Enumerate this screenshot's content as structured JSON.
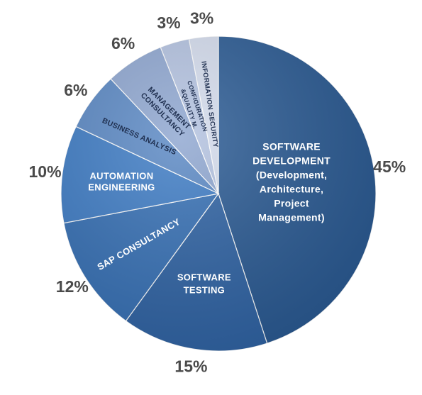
{
  "chart_data": {
    "type": "pie",
    "slices": [
      {
        "lines": [
          "SOFTWARE",
          "DEVELOPMENT",
          "(Development,",
          "Architecture,",
          "Project",
          "Management)"
        ],
        "value": 45,
        "pct_label": "45%",
        "color": "#2a5a93",
        "label_color": "#ffffff"
      },
      {
        "lines": [
          "SOFTWARE",
          "TESTING"
        ],
        "value": 15,
        "pct_label": "15%",
        "color": "#2f63a4",
        "label_color": "#ffffff"
      },
      {
        "lines": [
          "SAP CONSULTANCY"
        ],
        "value": 12,
        "pct_label": "12%",
        "color": "#3670b5",
        "label_color": "#ffffff"
      },
      {
        "lines": [
          "AUTOMATION",
          "ENGINEERING"
        ],
        "value": 10,
        "pct_label": "10%",
        "color": "#3e7cc5",
        "label_color": "#ffffff"
      },
      {
        "lines": [
          "BUSINESS ANALYSIS"
        ],
        "value": 6,
        "pct_label": "6%",
        "color": "#5a88c4",
        "label_color": "#1f2f4f"
      },
      {
        "lines": [
          "MANAGEMENT",
          "CONSULTANCY"
        ],
        "value": 6,
        "pct_label": "6%",
        "color": "#8ea6d0",
        "label_color": "#1f2f4f"
      },
      {
        "lines": [
          "CONFIGURATION",
          "&QUALITY M."
        ],
        "value": 3,
        "pct_label": "3%",
        "color": "#b3c2e0",
        "label_color": "#1f2f4f"
      },
      {
        "lines": [
          "INFORMATION SECURITY"
        ],
        "value": 3,
        "pct_label": "3%",
        "color": "#d4dced",
        "label_color": "#1f2f4f"
      }
    ],
    "start": "top",
    "direction": "clockwise"
  }
}
